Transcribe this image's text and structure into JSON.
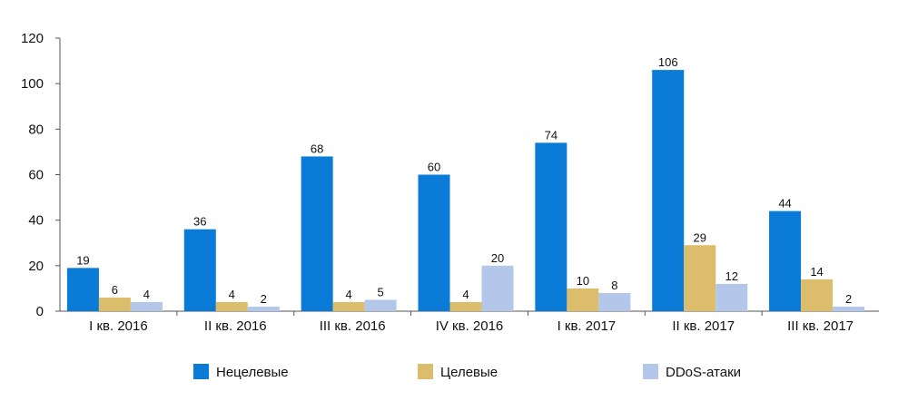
{
  "chart_data": {
    "type": "bar",
    "title": "",
    "xlabel": "",
    "ylabel": "",
    "ylim": [
      0,
      120
    ],
    "yticks": [
      0,
      20,
      40,
      60,
      80,
      100,
      120
    ],
    "grid": false,
    "legend_position": "bottom",
    "categories": [
      "I кв. 2016",
      "II кв. 2016",
      "III кв. 2016",
      "IV кв. 2016",
      "I кв. 2017",
      "II кв. 2017",
      "III кв. 2017"
    ],
    "series": [
      {
        "name": "Нецелевые",
        "color": "#0a7bd6",
        "values": [
          19,
          36,
          68,
          60,
          74,
          106,
          44
        ]
      },
      {
        "name": "Целевые",
        "color": "#dcbd6c",
        "values": [
          6,
          4,
          4,
          4,
          10,
          29,
          14
        ]
      },
      {
        "name": "DDoS-атаки",
        "color": "#b2c7ea",
        "values": [
          4,
          2,
          5,
          20,
          8,
          12,
          2
        ]
      }
    ]
  }
}
